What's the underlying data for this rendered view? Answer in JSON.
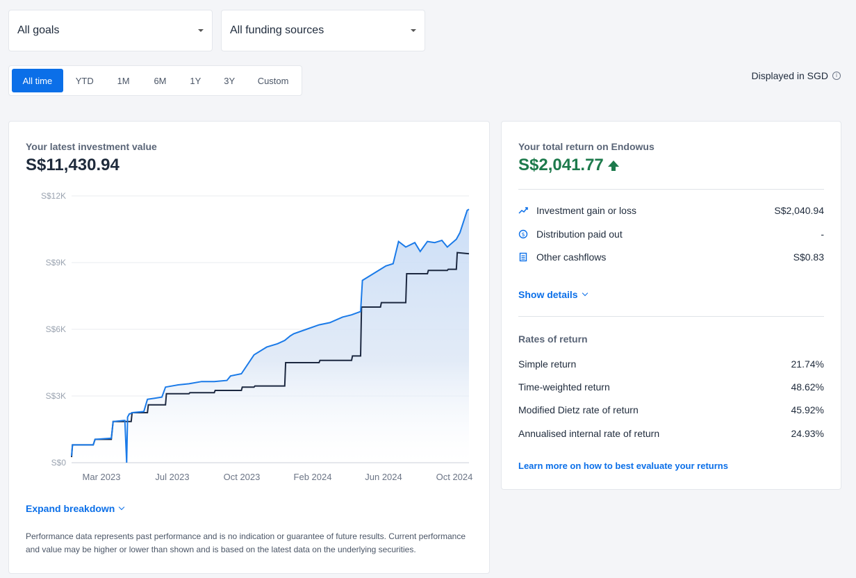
{
  "filters": {
    "goals": "All goals",
    "funding": "All funding sources"
  },
  "ranges": [
    "All time",
    "YTD",
    "1M",
    "6M",
    "1Y",
    "3Y",
    "Custom"
  ],
  "active_range": "All time",
  "displayed_in": "Displayed in SGD",
  "value_card": {
    "label": "Your latest investment value",
    "value": "S$11,430.94",
    "expand_link": "Expand breakdown",
    "disclaimer": "Performance data represents past performance and is no indication or guarantee of future results. Current performance and value may be higher or lower than shown and is based on the latest data on the underlying securities."
  },
  "chart_data": {
    "type": "line",
    "title": "",
    "xlabel": "",
    "ylabel": "",
    "y_ticks": [
      "S$0",
      "S$3K",
      "S$6K",
      "S$9K",
      "S$12K"
    ],
    "x_ticks": [
      "Mar 2023",
      "Jul 2023",
      "Oct 2023",
      "Feb 2024",
      "Jun 2024",
      "Oct 2024"
    ],
    "ylim": [
      0,
      12000
    ],
    "xlim": [
      0,
      22
    ],
    "colors": {
      "value": "#1a7ae8",
      "invested": "#1c2840"
    },
    "series": [
      {
        "key": "value",
        "x": [
          0,
          0.05,
          1.2,
          1.3,
          2.2,
          2.3,
          2.9,
          2.95,
          3.05,
          3.1,
          3.2,
          3.25,
          3.35,
          4.0,
          4.2,
          4.6,
          5.0,
          5.2,
          5.9,
          6.5,
          7.2,
          7.9,
          8.6,
          8.8,
          9.4,
          10.1,
          10.8,
          11.4,
          11.8,
          12.1,
          12.3,
          13.0,
          13.7,
          14.3,
          15.0,
          15.5,
          16.0,
          16.1,
          16.6,
          17.1,
          17.4,
          17.8,
          18.1,
          18.5,
          19.0,
          19.3,
          19.7,
          20.1,
          20.5,
          20.8,
          21.3,
          21.5,
          21.9,
          22.0
        ],
        "y": [
          300,
          800,
          800,
          1050,
          1100,
          1850,
          1900,
          1900,
          0,
          2050,
          2200,
          2200,
          2250,
          2300,
          2850,
          2900,
          2950,
          3400,
          3500,
          3550,
          3650,
          3650,
          3700,
          3900,
          4000,
          4850,
          5200,
          5350,
          5500,
          5700,
          5800,
          6000,
          6200,
          6300,
          6550,
          6650,
          6800,
          8200,
          8450,
          8700,
          8850,
          8950,
          9950,
          9700,
          9900,
          9500,
          9950,
          9900,
          10000,
          9700,
          10050,
          10350,
          11350,
          11400
        ]
      },
      {
        "key": "invested",
        "x": [
          0,
          0.05,
          1.2,
          1.3,
          2.2,
          2.3,
          3.3,
          3.35,
          4.2,
          4.25,
          5.2,
          5.25,
          6.5,
          6.55,
          7.9,
          7.95,
          9.4,
          9.45,
          10.1,
          10.15,
          11.8,
          11.85,
          13.7,
          13.75,
          15.5,
          15.55,
          16.0,
          16.05,
          17.1,
          17.15,
          18.5,
          18.55,
          19.7,
          19.75,
          20.8,
          20.85,
          21.3,
          21.35,
          22.0
        ],
        "y": [
          250,
          800,
          800,
          1050,
          1050,
          1850,
          1850,
          2250,
          2250,
          2600,
          2600,
          3100,
          3100,
          3150,
          3150,
          3250,
          3250,
          3400,
          3400,
          3450,
          3450,
          4500,
          4500,
          4600,
          4600,
          4800,
          4800,
          7000,
          7000,
          7200,
          7200,
          8500,
          8500,
          8650,
          8650,
          8700,
          8700,
          9450,
          9400
        ]
      }
    ]
  },
  "return_card": {
    "label": "Your total return on Endowus",
    "value": "S$2,041.77",
    "items": [
      {
        "icon": "trend-icon",
        "label": "Investment gain or loss",
        "value": "S$2,040.94"
      },
      {
        "icon": "coin-icon",
        "label": "Distribution paid out",
        "value": "-"
      },
      {
        "icon": "receipt-icon",
        "label": "Other cashflows",
        "value": "S$0.83"
      }
    ],
    "show_details": "Show details",
    "rates_title": "Rates of return",
    "rates": [
      {
        "label": "Simple return",
        "value": "21.74%"
      },
      {
        "label": "Time-weighted return",
        "value": "48.62%"
      },
      {
        "label": "Modified Dietz rate of return",
        "value": "45.92%"
      },
      {
        "label": "Annualised internal rate of return",
        "value": "24.93%"
      }
    ],
    "learn_more": "Learn more on how to best evaluate your returns"
  }
}
